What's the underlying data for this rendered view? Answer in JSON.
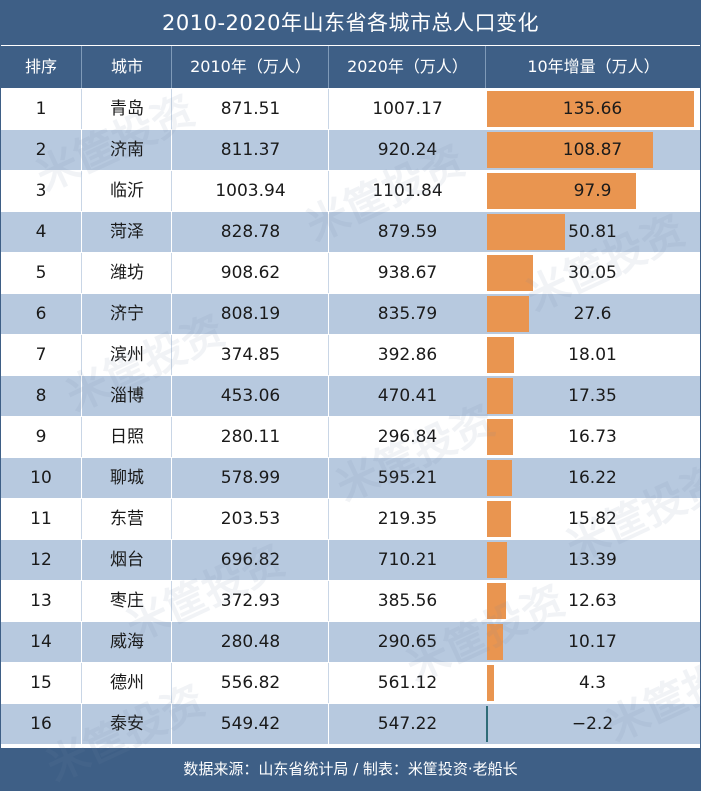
{
  "title": "2010-2020年山东省各城市总人口变化",
  "header": {
    "rank": "排序",
    "city": "城市",
    "y2010": "2010年（万人）",
    "y2020": "2020年（万人）",
    "increase": "10年增量（万人）"
  },
  "footer": "数据来源：山东省统计局 / 制表：米筐投资·老船长",
  "watermark": "米筐投资",
  "colors": {
    "header_bg": "#3e5f86",
    "stripe": "#b7c9df",
    "bar_positive": "#e99550",
    "bar_negative": "#2f6c78"
  },
  "chart_data": {
    "type": "table",
    "columns": [
      "排序",
      "城市",
      "2010年（万人）",
      "2020年（万人）",
      "10年增量（万人）"
    ],
    "rows": [
      {
        "rank": "1",
        "city": "青岛",
        "y2010": "871.51",
        "y2020": "1007.17",
        "increase": "135.66"
      },
      {
        "rank": "2",
        "city": "济南",
        "y2010": "811.37",
        "y2020": "920.24",
        "increase": "108.87"
      },
      {
        "rank": "3",
        "city": "临沂",
        "y2010": "1003.94",
        "y2020": "1101.84",
        "increase": "97.9"
      },
      {
        "rank": "4",
        "city": "菏泽",
        "y2010": "828.78",
        "y2020": "879.59",
        "increase": "50.81"
      },
      {
        "rank": "5",
        "city": "潍坊",
        "y2010": "908.62",
        "y2020": "938.67",
        "increase": "30.05"
      },
      {
        "rank": "6",
        "city": "济宁",
        "y2010": "808.19",
        "y2020": "835.79",
        "increase": "27.6"
      },
      {
        "rank": "7",
        "city": "滨州",
        "y2010": "374.85",
        "y2020": "392.86",
        "increase": "18.01"
      },
      {
        "rank": "8",
        "city": "淄博",
        "y2010": "453.06",
        "y2020": "470.41",
        "increase": "17.35"
      },
      {
        "rank": "9",
        "city": "日照",
        "y2010": "280.11",
        "y2020": "296.84",
        "increase": "16.73"
      },
      {
        "rank": "10",
        "city": "聊城",
        "y2010": "578.99",
        "y2020": "595.21",
        "increase": "16.22"
      },
      {
        "rank": "11",
        "city": "东营",
        "y2010": "203.53",
        "y2020": "219.35",
        "increase": "15.82"
      },
      {
        "rank": "12",
        "city": "烟台",
        "y2010": "696.82",
        "y2020": "710.21",
        "increase": "13.39"
      },
      {
        "rank": "13",
        "city": "枣庄",
        "y2010": "372.93",
        "y2020": "385.56",
        "increase": "12.63"
      },
      {
        "rank": "14",
        "city": "威海",
        "y2010": "280.48",
        "y2020": "290.65",
        "increase": "10.17"
      },
      {
        "rank": "15",
        "city": "德州",
        "y2010": "556.82",
        "y2020": "561.12",
        "increase": "4.3"
      },
      {
        "rank": "16",
        "city": "泰安",
        "y2010": "549.42",
        "y2020": "547.22",
        "increase": "-2.2"
      }
    ]
  }
}
